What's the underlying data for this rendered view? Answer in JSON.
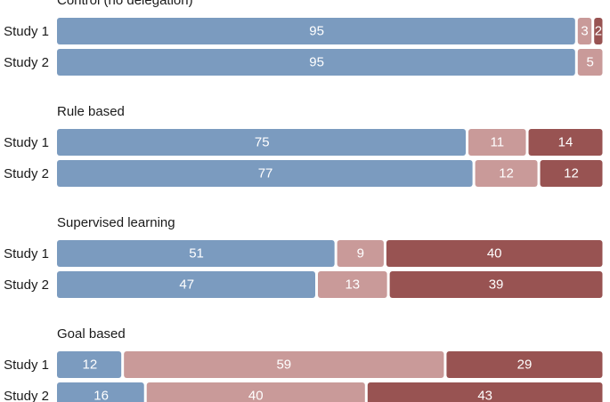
{
  "chart_data": {
    "type": "bar",
    "orientation": "horizontal-stacked-100",
    "xlim": [
      0,
      100
    ],
    "grid": false,
    "segment_colors": [
      "#7b9bbf",
      "#c99a99",
      "#985352"
    ],
    "groups": [
      {
        "title": "Control (no delegation)",
        "rows": [
          {
            "label": "Study 1",
            "values": [
              95,
              3,
              2
            ]
          },
          {
            "label": "Study 2",
            "values": [
              95,
              5,
              0
            ]
          }
        ]
      },
      {
        "title": "Rule based",
        "rows": [
          {
            "label": "Study 1",
            "values": [
              75,
              11,
              14
            ]
          },
          {
            "label": "Study 2",
            "values": [
              77,
              12,
              12
            ]
          }
        ]
      },
      {
        "title": "Supervised learning",
        "rows": [
          {
            "label": "Study 1",
            "values": [
              51,
              9,
              40
            ]
          },
          {
            "label": "Study 2",
            "values": [
              47,
              13,
              39
            ]
          }
        ]
      },
      {
        "title": "Goal based",
        "rows": [
          {
            "label": "Study 1",
            "values": [
              12,
              59,
              29
            ]
          },
          {
            "label": "Study 2",
            "values": [
              16,
              40,
              43
            ]
          }
        ]
      }
    ]
  }
}
